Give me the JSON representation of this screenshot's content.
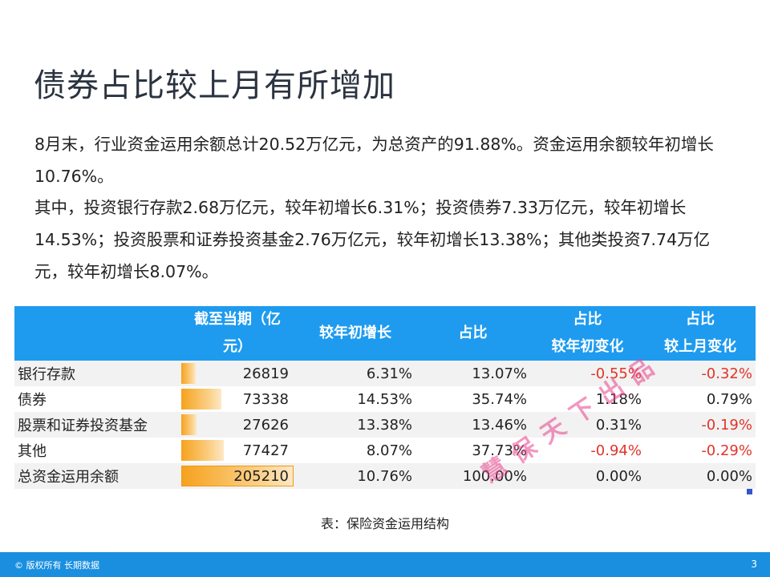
{
  "title": "债券占比较上月有所增加",
  "paragraphs": [
    "8月末，行业资金运用余额总计20.52万亿元，为总资产的91.88%。资金运用余额较年初增长10.76%。",
    "其中，投资银行存款2.68万亿元，较年初增长6.31%；投资债券7.33万亿元，较年初增长14.53%；投资股票和证券投资基金2.76万亿元，较年初增长13.38%；其他类投资7.74万亿元，较年初增长8.07%。"
  ],
  "table": {
    "headers": [
      {
        "lines": [
          "",
          ""
        ]
      },
      {
        "lines": [
          "截至当期（亿",
          "元）"
        ]
      },
      {
        "lines": [
          "较年初增长"
        ]
      },
      {
        "lines": [
          "占比"
        ]
      },
      {
        "lines": [
          "占比",
          "较年初变化"
        ]
      },
      {
        "lines": [
          "占比",
          "较上月变化"
        ]
      }
    ],
    "rows": [
      {
        "name": "银行存款",
        "amount": "26819",
        "amount_fraction": 0.1307,
        "growth": "6.31%",
        "share": "13.07%",
        "ytd_change": "-0.55%",
        "mom_change": "-0.32%"
      },
      {
        "name": "债券",
        "amount": "73338",
        "amount_fraction": 0.3574,
        "growth": "14.53%",
        "share": "35.74%",
        "ytd_change": "1.18%",
        "mom_change": "0.79%"
      },
      {
        "name": "股票和证券投资基金",
        "amount": "27626",
        "amount_fraction": 0.1346,
        "growth": "13.38%",
        "share": "13.46%",
        "ytd_change": "0.31%",
        "mom_change": "-0.19%"
      },
      {
        "name": "其他",
        "amount": "77427",
        "amount_fraction": 0.3773,
        "growth": "8.07%",
        "share": "37.73%",
        "ytd_change": "-0.94%",
        "mom_change": "-0.29%"
      },
      {
        "name": "总资金运用余额",
        "amount": "205210",
        "amount_fraction": 1.0,
        "growth": "10.76%",
        "share": "100.00%",
        "ytd_change": "0.00%",
        "mom_change": "0.00%"
      }
    ],
    "colors": {
      "header_bg": "#1e9bef",
      "negative": "#e0352b",
      "bar": "#f6a21d"
    }
  },
  "caption": "表：保险资金运用结构",
  "watermark": "慧保天下出品",
  "footer": {
    "copyright": "© 版权所有 长期数据",
    "page_number": "3"
  }
}
